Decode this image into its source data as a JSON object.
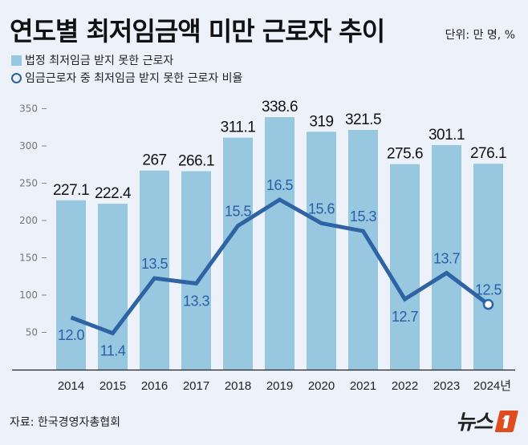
{
  "header": {
    "title": "연도별 최저임금액 미만 근로자 추이",
    "unit": "단위: 만 명, %"
  },
  "legend": {
    "bar_label": "법정 최저임금 받지 못한 근로자",
    "line_label": "임금근로자 중 최저임금 받지 못한 근로자 비율"
  },
  "footer": {
    "source": "자료: 한국경영자총협회",
    "logo_text": "뉴스",
    "logo_mark": "1"
  },
  "colors": {
    "bar": "#97c8e0",
    "line": "#2e64a3",
    "line_label": "#2a5ea8",
    "background": "#edf1f9"
  },
  "chart_data": {
    "type": "bar+line",
    "title": "연도별 최저임금액 미만 근로자 추이",
    "categories": [
      "2014",
      "2015",
      "2016",
      "2017",
      "2018",
      "2019",
      "2020",
      "2021",
      "2022",
      "2023",
      "2024년"
    ],
    "series": [
      {
        "name": "법정 최저임금 받지 못한 근로자",
        "type": "bar",
        "unit": "만 명",
        "values": [
          227.1,
          222.4,
          267,
          266.1,
          311.1,
          338.6,
          319,
          321.5,
          275.6,
          301.1,
          276.1
        ],
        "labels": [
          "227.1",
          "222.4",
          "267",
          "266.1",
          "311.1",
          "338.6",
          "319",
          "321.5",
          "275.6",
          "301.1",
          "276.1"
        ]
      },
      {
        "name": "임금근로자 중 최저임금 받지 못한 근로자 비율",
        "type": "line",
        "unit": "%",
        "values": [
          12.0,
          11.4,
          13.5,
          13.3,
          15.5,
          16.5,
          15.6,
          15.3,
          12.7,
          13.7,
          12.5
        ],
        "labels": [
          "12.0",
          "11.4",
          "13.5",
          "13.3",
          "15.5",
          "16.5",
          "15.6",
          "15.3",
          "12.7",
          "13.7",
          "12.5"
        ],
        "label_position": [
          "below",
          "below",
          "above",
          "below",
          "above",
          "above",
          "above",
          "above",
          "below",
          "above",
          "above"
        ]
      }
    ],
    "y_axis": {
      "ticks": [
        50,
        100,
        150,
        200,
        250,
        300,
        350
      ],
      "range": [
        0,
        370
      ]
    },
    "line_scale": {
      "range": [
        10.7,
        17.7
      ]
    },
    "grid": false,
    "legend_position": "top-left"
  }
}
